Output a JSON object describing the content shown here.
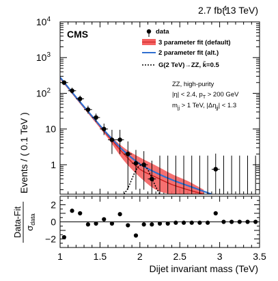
{
  "header": {
    "lumi": "2.7 fb",
    "lumi_exp": "-1",
    "energy": "(13 TeV)",
    "experiment": "CMS"
  },
  "annotations": {
    "line1": "ZZ, high-purity",
    "line2": "|η| < 2.4, p",
    "line2_sub": "T",
    "line2_tail": " > 200 GeV",
    "line3_a": "m",
    "line3_a_sub": "jj",
    "line3_b": " > 1 TeV, |Δη",
    "line3_b_sub": "jj",
    "line3_c": "| < 1.3"
  },
  "chart_data": [
    {
      "type": "scatter",
      "panel": "main",
      "xlabel": "",
      "ylabel": "Events / ( 0.1 TeV )",
      "xlim": [
        1.0,
        3.5
      ],
      "ylim": [
        0.15,
        10000
      ],
      "log_y": true,
      "yticks": [
        {
          "value": 1,
          "label": "1"
        },
        {
          "value": 10,
          "label": "10"
        },
        {
          "value": 100,
          "label": "10",
          "exp": "2"
        },
        {
          "value": 1000,
          "label": "10",
          "exp": "3"
        },
        {
          "value": 10000,
          "label": "10",
          "exp": "4"
        }
      ],
      "legend": {
        "placement": "top-right",
        "entries": [
          {
            "key": "data",
            "label": "data",
            "style": "marker"
          },
          {
            "key": "fit3",
            "label": "3 parameter fit (default)",
            "style": "band",
            "color": "#f03c3c"
          },
          {
            "key": "fit2",
            "label": "2 parameter fit (alt.)",
            "style": "line",
            "color": "#2f6fd0"
          },
          {
            "key": "signal",
            "label": "G(2 TeV)→ZZ, k̃=0.5",
            "style": "dashed",
            "color": "#000000"
          }
        ]
      },
      "series": [
        {
          "key": "data",
          "x": [
            1.05,
            1.15,
            1.25,
            1.35,
            1.45,
            1.55,
            1.65,
            1.75,
            1.85,
            1.95,
            2.05,
            2.15,
            2.95
          ],
          "y": [
            200,
            118,
            70,
            35,
            21,
            10,
            5,
            5,
            2,
            1.1,
            1,
            0.4,
            0.75
          ],
          "yerr_up": [
            30,
            25,
            16,
            10,
            6,
            4.2,
            4.5,
            4.5,
            2.5,
            1.5,
            1.4,
            0.9,
            1.3
          ],
          "yerr_down": [
            30,
            20,
            15,
            8,
            5,
            3.2,
            3,
            3,
            1.8,
            0.9,
            0.8,
            0.3,
            0.6
          ]
        },
        {
          "key": "fit3",
          "x": [
            1.0,
            1.2,
            1.4,
            1.6,
            1.8,
            2.0,
            2.2,
            2.4,
            2.6,
            2.8
          ],
          "y": [
            270,
            75,
            22,
            6.5,
            2.0,
            0.75,
            0.45,
            0.28,
            0.2,
            0.15
          ],
          "band_low": [
            250,
            70,
            20,
            5.5,
            1.3,
            0.45,
            0.2,
            0.15,
            0.15,
            0.15
          ],
          "band_high": [
            290,
            80,
            24,
            7.5,
            3.0,
            1.6,
            0.95,
            0.55,
            0.35,
            0.2
          ]
        },
        {
          "key": "fit2",
          "x": [
            1.0,
            1.2,
            1.4,
            1.6,
            1.8,
            2.0,
            2.2,
            2.4,
            2.6,
            2.8,
            2.9
          ],
          "y": [
            280,
            78,
            23,
            7,
            2.4,
            1.05,
            0.6,
            0.38,
            0.26,
            0.18,
            0.15
          ]
        },
        {
          "key": "signal",
          "x": [
            1.8,
            1.85,
            1.9,
            1.95,
            2.0,
            2.05,
            2.1,
            2.15,
            2.2,
            2.25
          ],
          "y": [
            0.15,
            0.22,
            0.4,
            0.7,
            0.95,
            0.95,
            0.72,
            0.42,
            0.24,
            0.15
          ]
        }
      ]
    },
    {
      "type": "scatter",
      "panel": "pull",
      "xlabel": "Dijet invariant mass (TeV)",
      "ylabel_num": "Data-Fit",
      "ylabel_den": "σ",
      "ylabel_den_sub": "data",
      "xlim": [
        1.0,
        3.5
      ],
      "ylim": [
        -3,
        3
      ],
      "xticks": [
        {
          "value": 1,
          "label": "1"
        },
        {
          "value": 1.5,
          "label": "1.5"
        },
        {
          "value": 2,
          "label": "2"
        },
        {
          "value": 2.5,
          "label": "2.5"
        },
        {
          "value": 3,
          "label": "3"
        },
        {
          "value": 3.5,
          "label": "3.5"
        }
      ],
      "yticks": [
        {
          "value": 2,
          "label": "2"
        },
        {
          "value": 0,
          "label": "0"
        },
        {
          "value": -2,
          "label": "−2"
        }
      ],
      "x": [
        1.05,
        1.15,
        1.25,
        1.35,
        1.45,
        1.55,
        1.65,
        1.75,
        1.85,
        1.95,
        2.05,
        2.15,
        2.25,
        2.35,
        2.45,
        2.55,
        2.65,
        2.75,
        2.85,
        2.95,
        3.05,
        3.15,
        3.25,
        3.35,
        3.45
      ],
      "y": [
        -1.8,
        1.3,
        1.0,
        -0.3,
        -0.2,
        0.3,
        -0.2,
        0.9,
        -0.4,
        -1.6,
        -0.3,
        -0.3,
        -0.2,
        -0.2,
        -0.1,
        -0.1,
        -0.1,
        -0.1,
        -0.1,
        1.0,
        0.0,
        0.0,
        0.0,
        0.0,
        0.0
      ]
    }
  ]
}
